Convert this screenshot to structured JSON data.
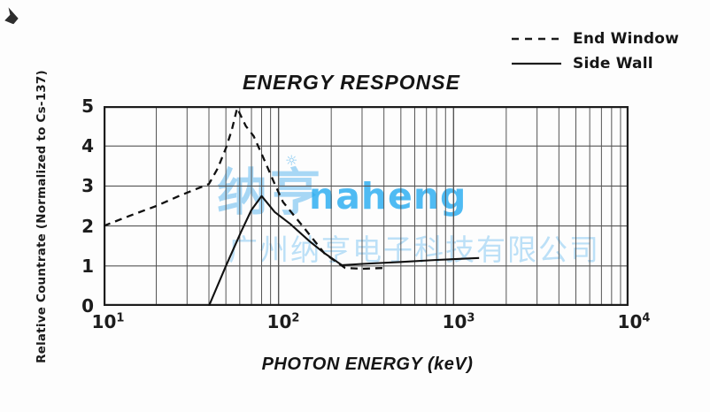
{
  "title": "ENERGY RESPONSE",
  "legend": [
    {
      "label": "End Window",
      "style": "dashed"
    },
    {
      "label": "Side Wall",
      "style": "solid"
    }
  ],
  "y_axis": {
    "label": "Relative Countrate (Normalized to Cs-137)",
    "ticks": [
      "5",
      "4",
      "3",
      "2",
      "1",
      "0"
    ]
  },
  "x_axis": {
    "label": "PHOTON ENERGY (keV)",
    "ticks": [
      {
        "base": "10",
        "exp": "1"
      },
      {
        "base": "10",
        "exp": "2"
      },
      {
        "base": "10",
        "exp": "3"
      },
      {
        "base": "10",
        "exp": "4"
      }
    ]
  },
  "watermark": {
    "logo": "纳亨",
    "gear_icon": "☼",
    "brand": "naheng",
    "company": "广州纳亨电子科技有限公司",
    "logo_color": "#73c0f0",
    "brand_color": "#23aaf0",
    "company_color": "#87c8f2"
  },
  "chart_data": {
    "type": "line",
    "title": "ENERGY RESPONSE",
    "xlabel": "PHOTON ENERGY (keV)",
    "ylabel": "Relative Countrate (Normalized to Cs-137)",
    "x_scale": "log",
    "xlim": [
      10,
      10000
    ],
    "ylim": [
      0,
      5
    ],
    "grid": "on",
    "legend_position": "top-right",
    "style": {
      "grid_color": "#555555",
      "border_color": "#1c1c1c",
      "line_color": "#111111"
    },
    "series": [
      {
        "name": "End Window",
        "line_style": "dashed",
        "points": [
          [
            10,
            2.0
          ],
          [
            14,
            2.25
          ],
          [
            20,
            2.5
          ],
          [
            28,
            2.78
          ],
          [
            40,
            3.05
          ],
          [
            45,
            3.45
          ],
          [
            50,
            3.95
          ],
          [
            54,
            4.4
          ],
          [
            58,
            4.95
          ],
          [
            65,
            4.5
          ],
          [
            72,
            4.25
          ],
          [
            81,
            3.75
          ],
          [
            95,
            3.05
          ],
          [
            106,
            2.6
          ],
          [
            140,
            1.95
          ],
          [
            184,
            1.3
          ],
          [
            240,
            0.95
          ],
          [
            300,
            0.93
          ],
          [
            400,
            0.95
          ]
        ]
      },
      {
        "name": "Side Wall",
        "line_style": "solid",
        "points": [
          [
            40,
            0.0
          ],
          [
            50,
            1.0
          ],
          [
            61,
            1.85
          ],
          [
            70,
            2.4
          ],
          [
            80,
            2.75
          ],
          [
            95,
            2.35
          ],
          [
            116,
            2.06
          ],
          [
            151,
            1.61
          ],
          [
            184,
            1.31
          ],
          [
            230,
            1.02
          ],
          [
            300,
            1.05
          ],
          [
            500,
            1.1
          ],
          [
            800,
            1.15
          ],
          [
            1400,
            1.2
          ]
        ]
      }
    ]
  }
}
